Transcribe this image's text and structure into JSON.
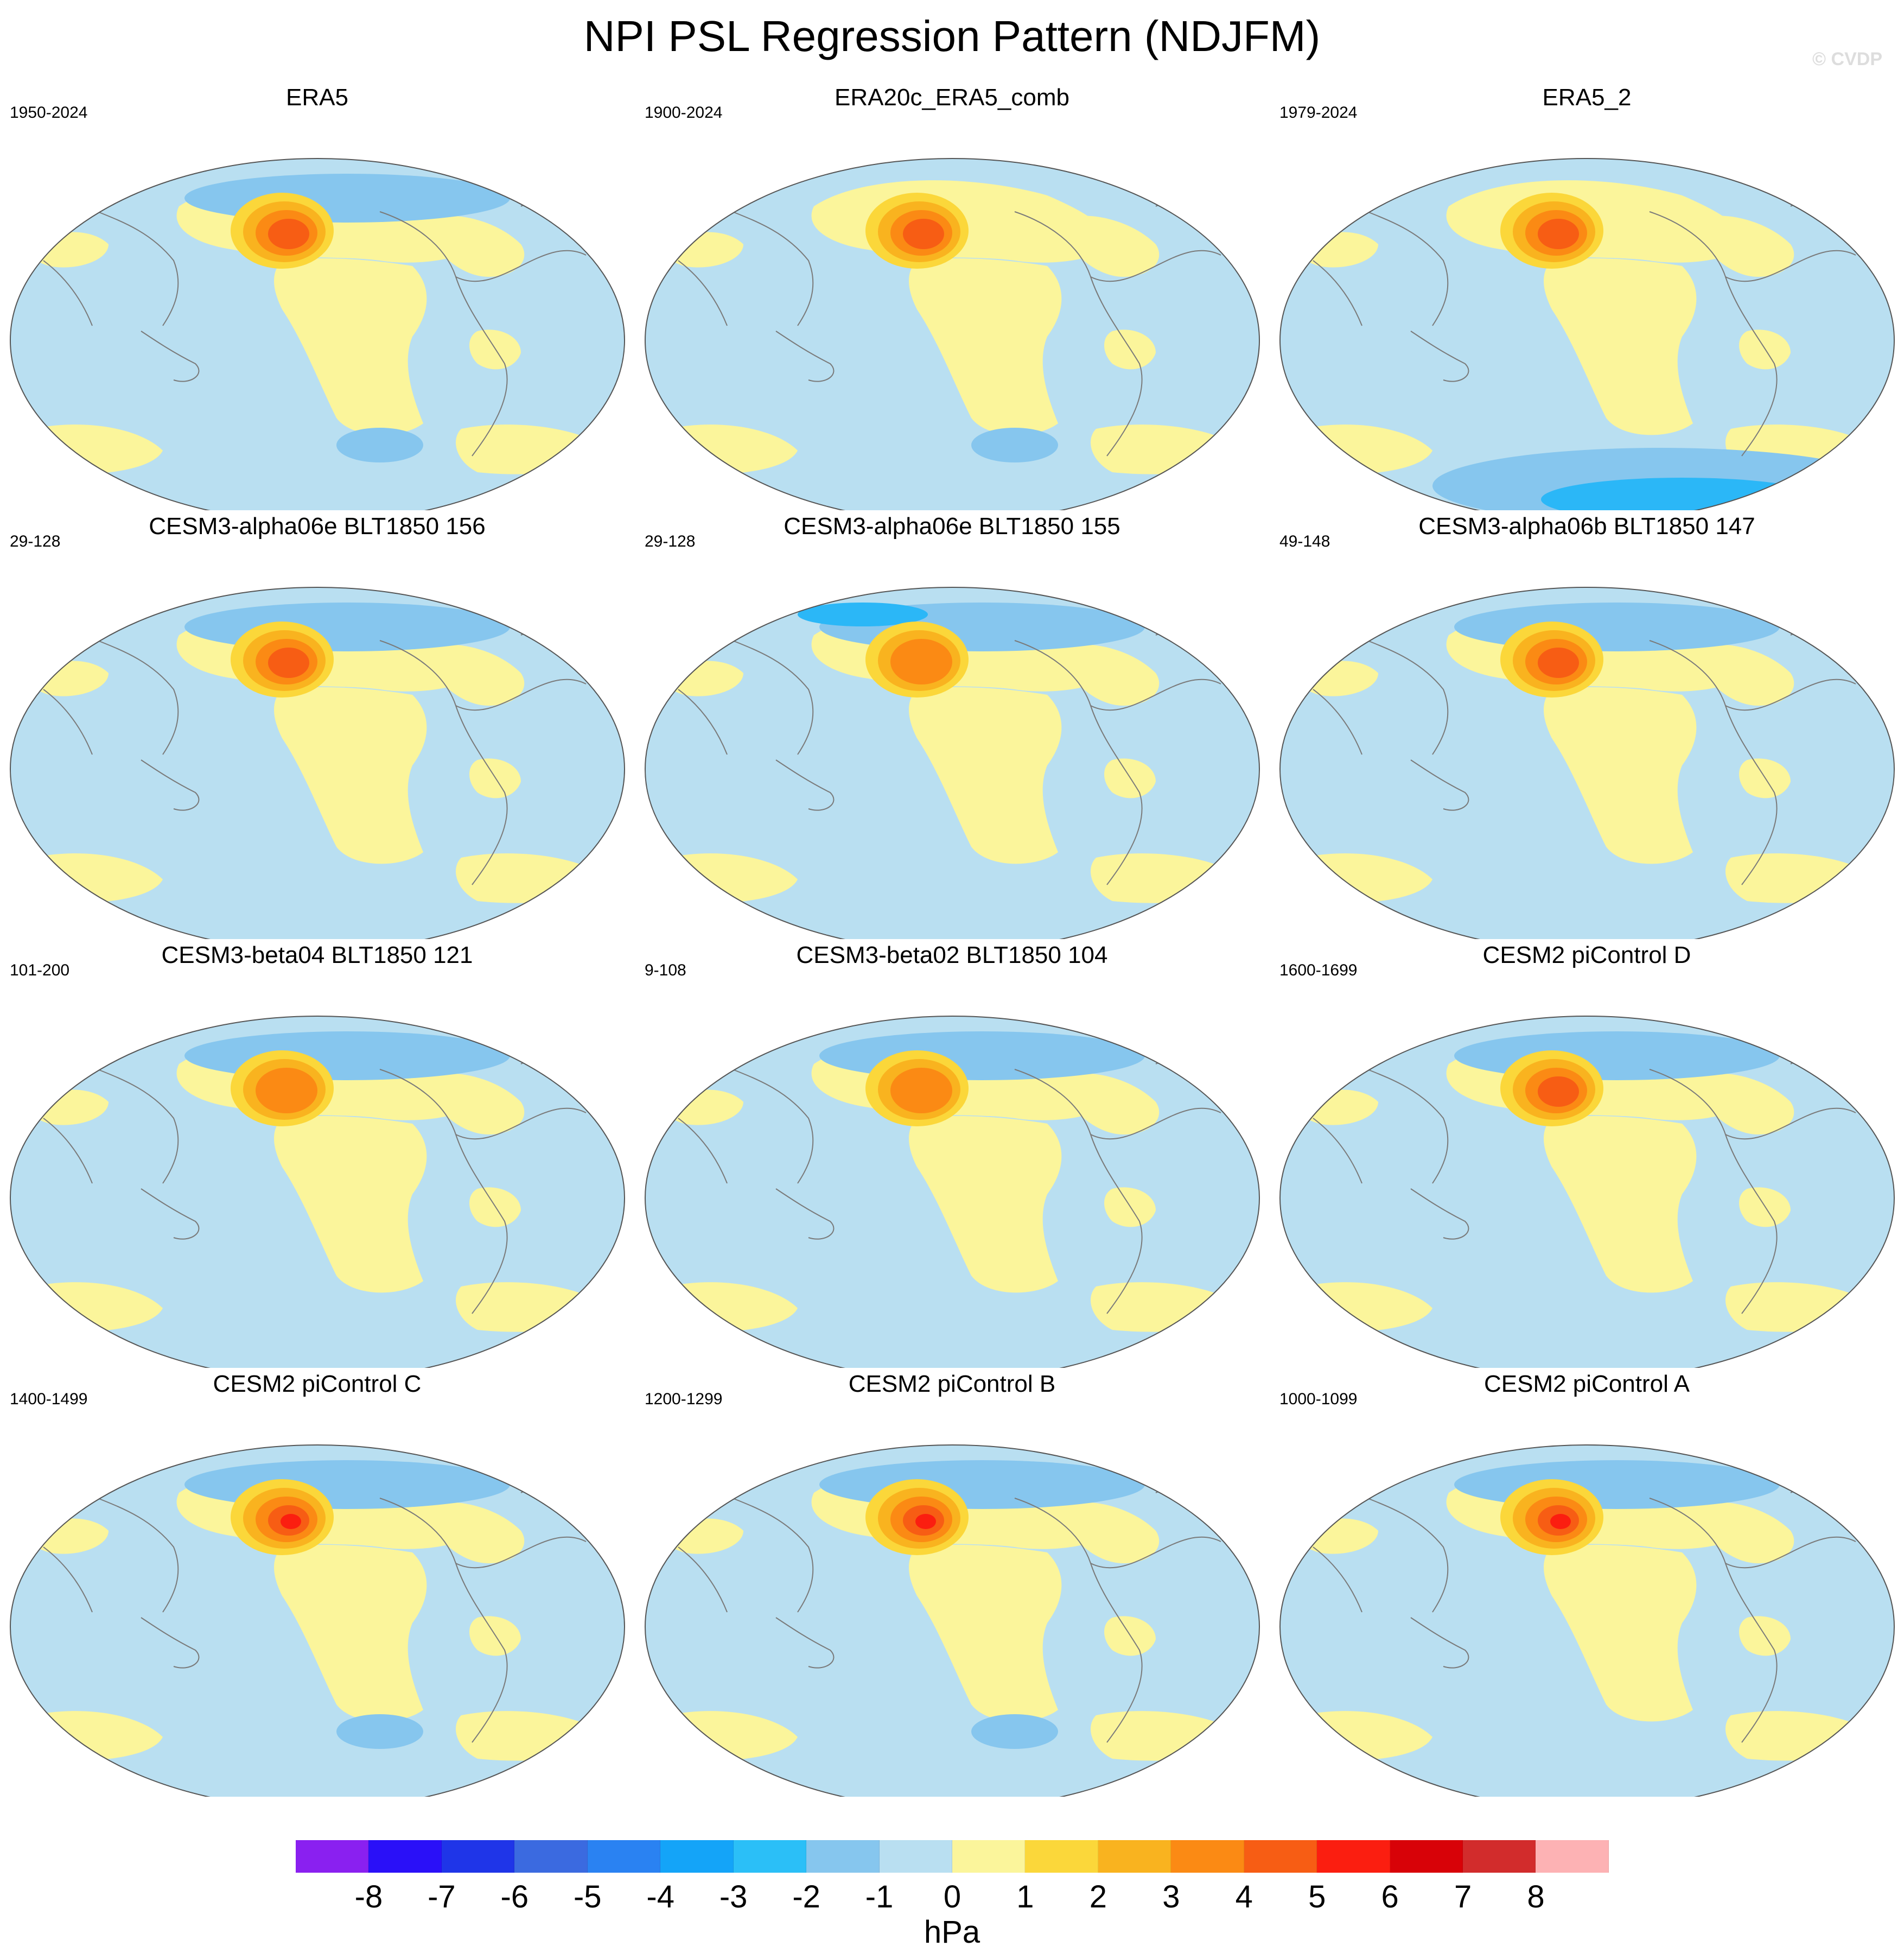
{
  "figure": {
    "title": "NPI PSL Regression Pattern (NDJFM)",
    "credit": "© CVDP"
  },
  "colors": {
    "ocean_neg": "#b9dff1",
    "pos1": "#fbf59b",
    "pos2": "#fbd73a",
    "pos3": "#f9b31f",
    "pos4": "#fb8a14",
    "pos5": "#f75d14",
    "pos6": "#fb1e10",
    "neg2": "#86c6ee",
    "neg3": "#2bb7f7",
    "coast": "#7a7a7a"
  },
  "panels": [
    {
      "title": "ERA5",
      "period": "1950-2024",
      "center_max_hpa": 5,
      "neg_patches": [
        {
          "region": "south-pacific",
          "level": -2
        },
        {
          "region": "arctic",
          "level": -2
        }
      ]
    },
    {
      "title": "ERA20c_ERA5_comb",
      "period": "1900-2024",
      "center_max_hpa": 5,
      "neg_patches": [
        {
          "region": "south-pacific",
          "level": -2
        }
      ]
    },
    {
      "title": "ERA5_2",
      "period": "1979-2024",
      "center_max_hpa": 5,
      "neg_patches": [
        {
          "region": "antarctic",
          "level": -2
        },
        {
          "region": "antarctic-core",
          "level": -3
        }
      ]
    },
    {
      "title": "CESM3-alpha06e BLT1850 156",
      "period": "29-128",
      "center_max_hpa": 5,
      "neg_patches": [
        {
          "region": "arctic",
          "level": -2
        }
      ]
    },
    {
      "title": "CESM3-alpha06e BLT1850 155",
      "period": "29-128",
      "center_max_hpa": 4,
      "neg_patches": [
        {
          "region": "arctic",
          "level": -2
        },
        {
          "region": "arctic-core",
          "level": -3
        }
      ]
    },
    {
      "title": "CESM3-alpha06b BLT1850 147",
      "period": "49-148",
      "center_max_hpa": 5,
      "neg_patches": [
        {
          "region": "arctic",
          "level": -2
        }
      ]
    },
    {
      "title": "CESM3-beta04 BLT1850 121",
      "period": "101-200",
      "center_max_hpa": 4,
      "neg_patches": [
        {
          "region": "arctic",
          "level": -2
        }
      ]
    },
    {
      "title": "CESM3-beta02 BLT1850 104",
      "period": "9-108",
      "center_max_hpa": 4,
      "neg_patches": [
        {
          "region": "arctic",
          "level": -2
        }
      ]
    },
    {
      "title": "CESM2 piControl D",
      "period": "1600-1699",
      "center_max_hpa": 5,
      "neg_patches": [
        {
          "region": "arctic",
          "level": -2
        }
      ]
    },
    {
      "title": "CESM2 piControl C",
      "period": "1400-1499",
      "center_max_hpa": 6,
      "neg_patches": [
        {
          "region": "arctic",
          "level": -2
        },
        {
          "region": "south-pacific",
          "level": -2
        }
      ]
    },
    {
      "title": "CESM2 piControl B",
      "period": "1200-1299",
      "center_max_hpa": 6,
      "neg_patches": [
        {
          "region": "arctic",
          "level": -2
        },
        {
          "region": "south-pacific",
          "level": -2
        }
      ]
    },
    {
      "title": "CESM2 piControl A",
      "period": "1000-1099",
      "center_max_hpa": 6,
      "neg_patches": [
        {
          "region": "arctic",
          "level": -2
        }
      ]
    }
  ],
  "colorbar": {
    "colors": [
      "#8a20f0",
      "#2a10f8",
      "#1f35e8",
      "#3b6ae0",
      "#2a82f2",
      "#14a4f8",
      "#2bbff7",
      "#86c6ee",
      "#b9dff1",
      "#fbf59b",
      "#fbd73a",
      "#f9b31f",
      "#fb8a14",
      "#f75d14",
      "#fb1e10",
      "#d80208",
      "#d22c2c",
      "#fdb2b4"
    ],
    "labels": [
      "-8",
      "-7",
      "-6",
      "-5",
      "-4",
      "-3",
      "-2",
      "-1",
      "0",
      "1",
      "2",
      "3",
      "4",
      "5",
      "6",
      "7",
      "8"
    ],
    "units": "hPa"
  }
}
